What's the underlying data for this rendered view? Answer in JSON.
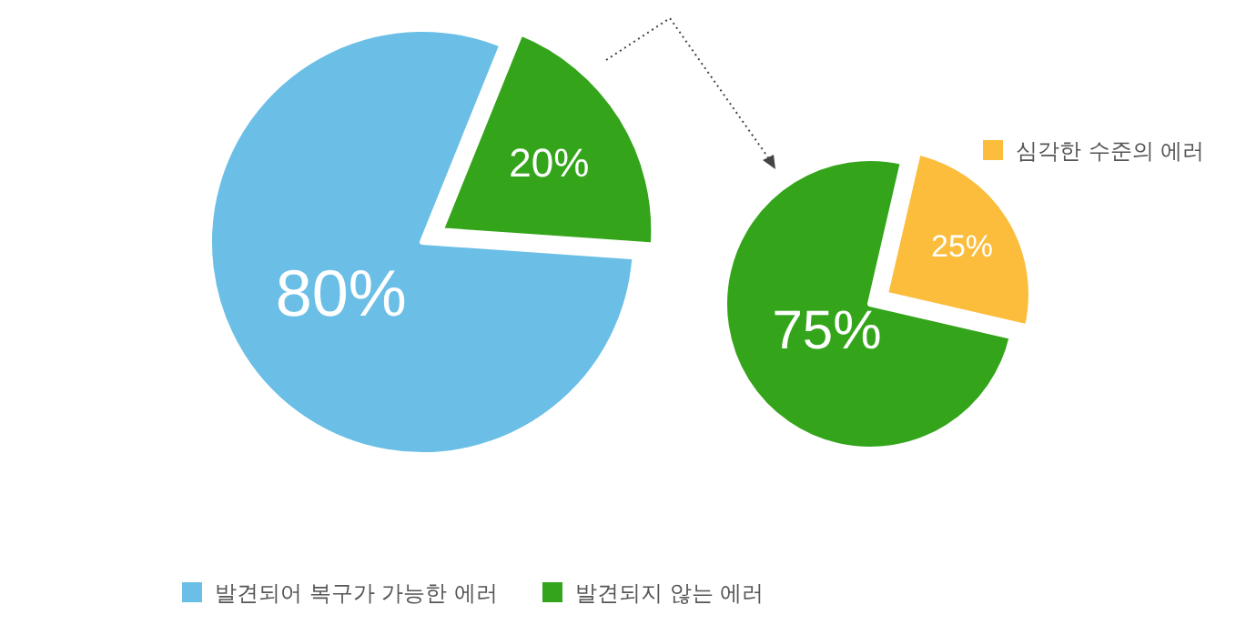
{
  "chart_data": [
    {
      "type": "pie",
      "categories": [
        "발견되어 복구가 가능한 에러",
        "발견되지 않는 에러"
      ],
      "values": [
        80,
        20
      ],
      "value_labels": [
        "80%",
        "20%"
      ],
      "colors": [
        "#6bbfe6",
        "#34a51b"
      ],
      "legend": "bottom"
    },
    {
      "type": "pie",
      "categories": [
        null,
        "심각한 수준의 에러"
      ],
      "values": [
        75,
        25
      ],
      "value_labels": [
        "75%",
        "25%"
      ],
      "colors": [
        "#34a51b",
        "#fbbd3b"
      ],
      "legend": "top right"
    }
  ]
}
